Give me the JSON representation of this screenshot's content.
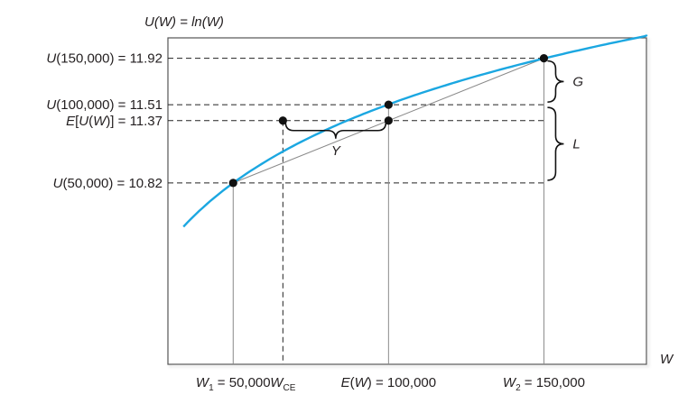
{
  "chart_data": {
    "type": "line",
    "title": "U(W) = ln(W)",
    "xlabel": "W",
    "curve": {
      "function": "ln",
      "x_start": 34000,
      "x_end": 185000,
      "color": "#1ba7e1"
    },
    "secant": {
      "from": [
        50000,
        10.82
      ],
      "to": [
        150000,
        11.92
      ],
      "color": "#8a8a8a"
    },
    "points": [
      {
        "x": 50000,
        "y": 10.82
      },
      {
        "x": 66000,
        "y": 11.37
      },
      {
        "x": 100000,
        "y": 11.37
      },
      {
        "x": 100000,
        "y": 11.51
      },
      {
        "x": 150000,
        "y": 11.92
      }
    ],
    "y_labels": [
      {
        "y": 11.92,
        "text": "U(150,000) = 11.92"
      },
      {
        "y": 11.51,
        "text": "U(100,000) = 11.51"
      },
      {
        "y": 11.37,
        "text": "E[U(W)] = 11.37"
      },
      {
        "y": 10.82,
        "text": "U(50,000) = 10.82"
      }
    ],
    "x_labels": [
      {
        "x": 50000,
        "main": "W",
        "sub": "1",
        "rest": " = 50,000"
      },
      {
        "x": 66000,
        "main": "W",
        "sub": "CE",
        "rest": ""
      },
      {
        "x": 100000,
        "main": "E(W) = 100,000",
        "sub": "",
        "rest": ""
      },
      {
        "x": 150000,
        "main": "W",
        "sub": "2",
        "rest": " = 150,000"
      }
    ],
    "annotations": [
      {
        "label": "G",
        "between_y": [
          11.51,
          11.92
        ],
        "at_x": 150000
      },
      {
        "label": "L",
        "between_y": [
          10.82,
          11.51
        ],
        "at_x": 150000
      },
      {
        "label": "Y",
        "between_x": [
          66000,
          100000
        ],
        "at_y": 11.37
      }
    ],
    "xlim": [
      29000,
      183000
    ],
    "ylim": [
      9.22,
      12.1
    ],
    "grid": false
  }
}
